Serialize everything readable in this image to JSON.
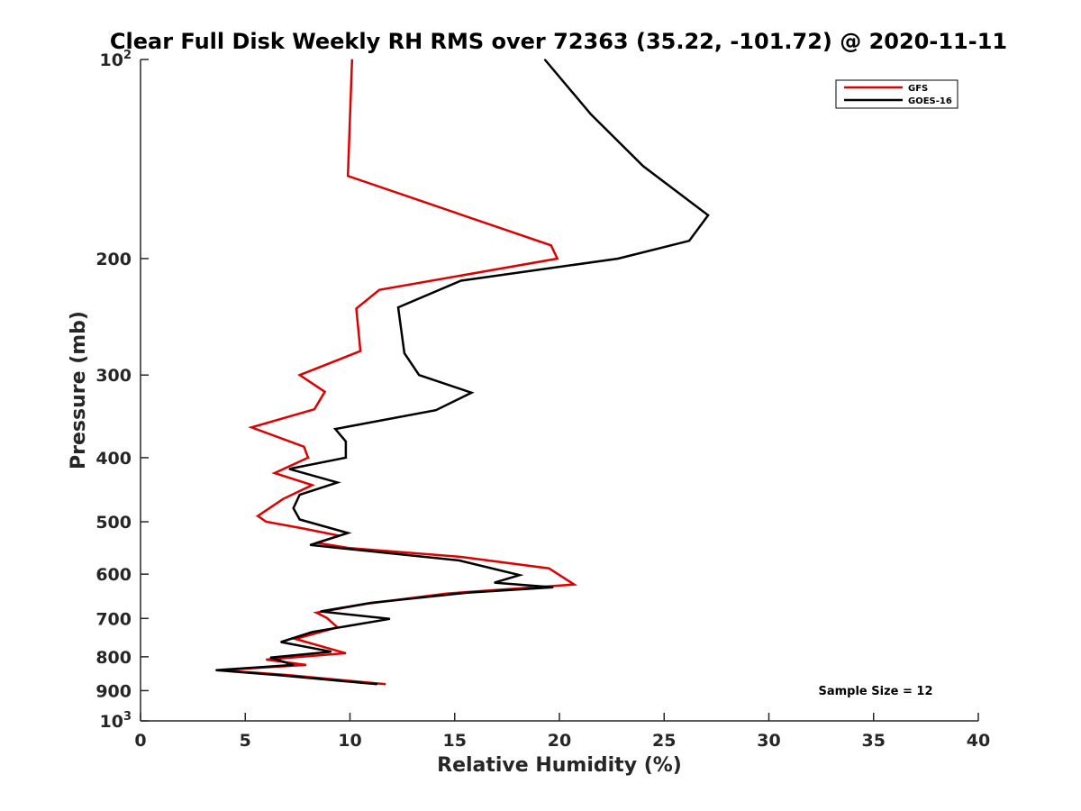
{
  "chart_data": {
    "type": "line",
    "title": "Clear Full Disk Weekly RH RMS over 72363 (35.22, -101.72) @ 2020-11-11",
    "xlabel": "Relative Humidity (%)",
    "ylabel": "Pressure (mb)",
    "xlim": [
      0,
      40
    ],
    "ylim": [
      100,
      1000
    ],
    "yscale": "log",
    "y_reversed": true,
    "grid": false,
    "legend_position": "top-right",
    "x_ticks": [
      "0",
      "5",
      "10",
      "15",
      "20",
      "25",
      "30",
      "35",
      "40"
    ],
    "y_ticks": [
      {
        "value": 100,
        "base": "10",
        "exp": "2"
      },
      {
        "value": 200,
        "label": "200"
      },
      {
        "value": 300,
        "label": "300"
      },
      {
        "value": 400,
        "label": "400"
      },
      {
        "value": 500,
        "label": "500"
      },
      {
        "value": 600,
        "label": "600"
      },
      {
        "value": 700,
        "label": "700"
      },
      {
        "value": 800,
        "label": "800"
      },
      {
        "value": 900,
        "label": "900"
      },
      {
        "value": 1000,
        "base": "10",
        "exp": "3"
      }
    ],
    "annotation": "Sample Size = 12",
    "series": [
      {
        "name": "GFS",
        "color": "#dd0000",
        "points": [
          [
            10.1,
            100
          ],
          [
            9.9,
            150
          ],
          [
            19.6,
            191
          ],
          [
            19.9,
            200
          ],
          [
            11.4,
            223
          ],
          [
            10.3,
            238
          ],
          [
            10.5,
            276
          ],
          [
            7.6,
            300
          ],
          [
            8.8,
            318
          ],
          [
            8.3,
            338
          ],
          [
            5.3,
            360
          ],
          [
            7.8,
            385
          ],
          [
            8.0,
            400
          ],
          [
            6.4,
            422
          ],
          [
            8.2,
            440
          ],
          [
            6.8,
            462
          ],
          [
            5.6,
            490
          ],
          [
            6.0,
            500
          ],
          [
            7.8,
            512
          ],
          [
            9.5,
            525
          ],
          [
            8.4,
            538
          ],
          [
            10.0,
            548
          ],
          [
            15.3,
            565
          ],
          [
            19.5,
            588
          ],
          [
            20.7,
            622
          ],
          [
            14.6,
            642
          ],
          [
            10.8,
            665
          ],
          [
            8.4,
            686
          ],
          [
            8.9,
            699
          ],
          [
            9.4,
            722
          ],
          [
            7.4,
            752
          ],
          [
            9.8,
            790
          ],
          [
            6.0,
            808
          ],
          [
            7.9,
            823
          ],
          [
            3.8,
            838
          ],
          [
            7.1,
            853
          ],
          [
            11.7,
            880
          ]
        ]
      },
      {
        "name": "GOES-16",
        "color": "#000000",
        "points": [
          [
            19.3,
            100
          ],
          [
            21.5,
            121
          ],
          [
            24.0,
            145
          ],
          [
            27.1,
            172
          ],
          [
            26.2,
            188
          ],
          [
            22.8,
            200
          ],
          [
            15.3,
            216
          ],
          [
            12.3,
            237
          ],
          [
            12.6,
            278
          ],
          [
            13.3,
            300
          ],
          [
            15.8,
            319
          ],
          [
            14.1,
            339
          ],
          [
            9.3,
            362
          ],
          [
            9.8,
            378
          ],
          [
            9.8,
            400
          ],
          [
            7.1,
            416
          ],
          [
            9.4,
            436
          ],
          [
            7.6,
            455
          ],
          [
            7.3,
            477
          ],
          [
            7.6,
            496
          ],
          [
            9.9,
            520
          ],
          [
            8.1,
            542
          ],
          [
            15.2,
            572
          ],
          [
            18.1,
            602
          ],
          [
            16.9,
            618
          ],
          [
            19.7,
            628
          ],
          [
            15.6,
            640
          ],
          [
            11.0,
            663
          ],
          [
            8.6,
            683
          ],
          [
            11.9,
            701
          ],
          [
            8.2,
            734
          ],
          [
            6.7,
            760
          ],
          [
            9.1,
            786
          ],
          [
            6.2,
            802
          ],
          [
            7.3,
            823
          ],
          [
            3.6,
            838
          ],
          [
            6.6,
            853
          ],
          [
            11.3,
            880
          ]
        ]
      }
    ]
  }
}
